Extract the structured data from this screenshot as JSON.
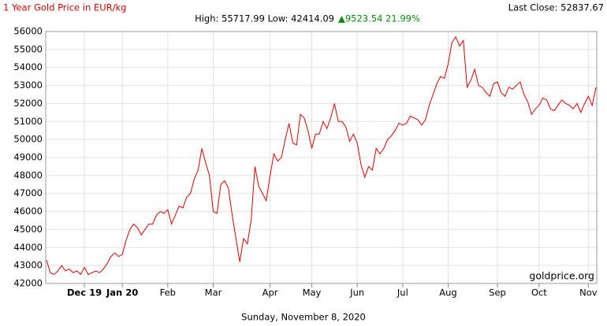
{
  "chart_data": {
    "type": "line",
    "title": "1 Year Gold Price in EUR/kg",
    "last_close": "Last Close: 52837.67",
    "high_low": "High: 55717.99 Low: 42414.09",
    "change": "▲9523.54 21.99%",
    "watermark": "goldprice.org",
    "date_caption": "Sunday, November 8, 2020",
    "color": "#e00000",
    "grid": true,
    "ylim": [
      42000,
      56000
    ],
    "yticks": [
      42000,
      43000,
      44000,
      45000,
      46000,
      47000,
      48000,
      49000,
      50000,
      51000,
      52000,
      53000,
      54000,
      55000,
      56000
    ],
    "categories": [
      null,
      null,
      null,
      null,
      null,
      null,
      null,
      null,
      null,
      null,
      "Dec 19",
      null,
      null,
      null,
      null,
      null,
      null,
      null,
      null,
      null,
      "Jan 20",
      null,
      null,
      null,
      null,
      null,
      null,
      null,
      null,
      null,
      null,
      null,
      "Feb",
      null,
      null,
      null,
      null,
      null,
      null,
      null,
      null,
      null,
      null,
      null,
      "Mar",
      null,
      null,
      null,
      null,
      null,
      null,
      null,
      null,
      null,
      null,
      null,
      null,
      null,
      null,
      "Apr",
      null,
      null,
      null,
      null,
      null,
      null,
      null,
      null,
      null,
      null,
      "May",
      null,
      null,
      null,
      null,
      null,
      null,
      null,
      null,
      null,
      null,
      null,
      "Jun",
      null,
      null,
      null,
      null,
      null,
      null,
      null,
      null,
      null,
      null,
      null,
      "Jul",
      null,
      null,
      null,
      null,
      null,
      null,
      null,
      null,
      null,
      null,
      null,
      "Aug",
      null,
      null,
      null,
      null,
      null,
      null,
      null,
      null,
      null,
      null,
      null,
      null,
      "Sep",
      null,
      null,
      null,
      null,
      null,
      null,
      null,
      null,
      null,
      null,
      "Oct",
      null,
      null,
      null,
      null,
      null,
      null,
      null,
      null,
      null,
      null,
      null,
      null,
      "Nov",
      null,
      null
    ],
    "values": [
      43300,
      42600,
      42500,
      42700,
      43000,
      42700,
      42800,
      42600,
      42700,
      42500,
      42900,
      42500,
      42600,
      42700,
      42600,
      42800,
      43100,
      43500,
      43700,
      43500,
      43600,
      44400,
      45000,
      45300,
      45100,
      44700,
      45000,
      45300,
      45300,
      45800,
      46000,
      45900,
      46100,
      45300,
      45800,
      46300,
      46200,
      46800,
      47000,
      47800,
      48300,
      49500,
      48700,
      48000,
      46000,
      45900,
      47500,
      47700,
      47300,
      45800,
      44500,
      43200,
      44500,
      44200,
      45500,
      48500,
      47400,
      47000,
      46600,
      48000,
      49200,
      48800,
      49000,
      50000,
      50900,
      49800,
      49700,
      51400,
      51200,
      50500,
      49500,
      50300,
      50300,
      51000,
      50600,
      51200,
      52000,
      51000,
      51000,
      50700,
      49900,
      50300,
      49800,
      48600,
      47900,
      48500,
      48300,
      49500,
      49200,
      49500,
      50000,
      50200,
      50500,
      50900,
      50800,
      50900,
      51300,
      51200,
      51100,
      50800,
      51100,
      51900,
      52500,
      53100,
      53500,
      53400,
      54200,
      55400,
      55700,
      55200,
      55500,
      52900,
      53300,
      53900,
      53000,
      52900,
      52600,
      52400,
      53100,
      53200,
      52600,
      52400,
      52900,
      52800,
      53000,
      53200,
      52500,
      52100,
      51400,
      51700,
      51900,
      52300,
      52200,
      51700,
      51600,
      51900,
      52200,
      52000,
      51900,
      51700,
      52000,
      51500,
      52000,
      52400,
      51900,
      52900
    ]
  }
}
